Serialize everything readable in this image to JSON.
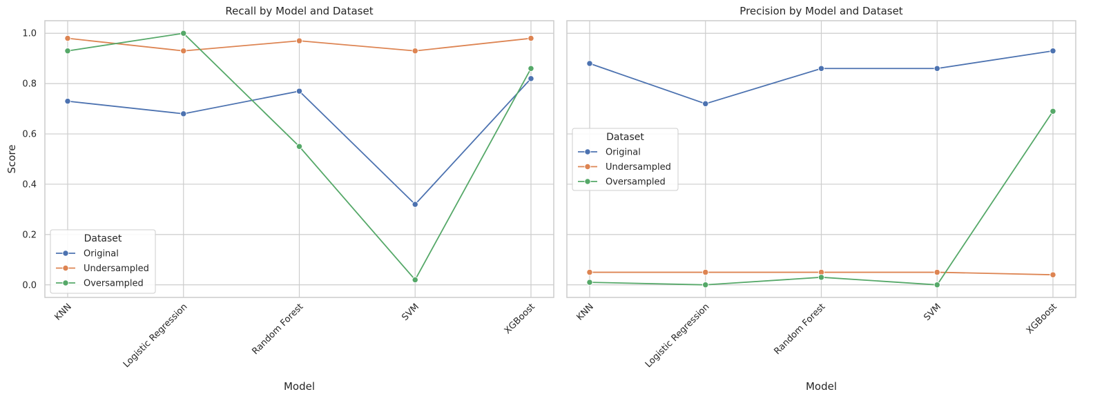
{
  "chart_data": [
    {
      "type": "line",
      "title": "Recall by Model and Dataset",
      "xlabel": "Model",
      "ylabel": "Score",
      "categories": [
        "KNN",
        "Logistic Regression",
        "Random Forest",
        "SVM",
        "XGBoost"
      ],
      "yticks": [
        "0.0",
        "0.2",
        "0.4",
        "0.6",
        "0.8",
        "1.0"
      ],
      "ylim": [
        -0.05,
        1.05
      ],
      "grid": true,
      "legend_placement": "lower-left",
      "legend_title": "Dataset",
      "series": [
        {
          "name": "Original",
          "color": "#4c72b0",
          "values": [
            0.73,
            0.68,
            0.77,
            0.32,
            0.82
          ]
        },
        {
          "name": "Undersampled",
          "color": "#dd8452",
          "values": [
            0.98,
            0.93,
            0.97,
            0.93,
            0.98
          ]
        },
        {
          "name": "Oversampled",
          "color": "#55a868",
          "values": [
            0.93,
            1.0,
            0.55,
            0.02,
            0.86
          ]
        }
      ]
    },
    {
      "type": "line",
      "title": "Precision by Model and Dataset",
      "xlabel": "Model",
      "ylabel": "",
      "categories": [
        "KNN",
        "Logistic Regression",
        "Random Forest",
        "SVM",
        "XGBoost"
      ],
      "yticks": [],
      "ylim": [
        -0.05,
        1.05
      ],
      "grid": true,
      "legend_placement": "center-left",
      "legend_title": "Dataset",
      "series": [
        {
          "name": "Original",
          "color": "#4c72b0",
          "values": [
            0.88,
            0.72,
            0.86,
            0.86,
            0.93
          ]
        },
        {
          "name": "Undersampled",
          "color": "#dd8452",
          "values": [
            0.05,
            0.05,
            0.05,
            0.05,
            0.04
          ]
        },
        {
          "name": "Oversampled",
          "color": "#55a868",
          "values": [
            0.01,
            0.0,
            0.03,
            0.0,
            0.69
          ]
        }
      ]
    }
  ]
}
